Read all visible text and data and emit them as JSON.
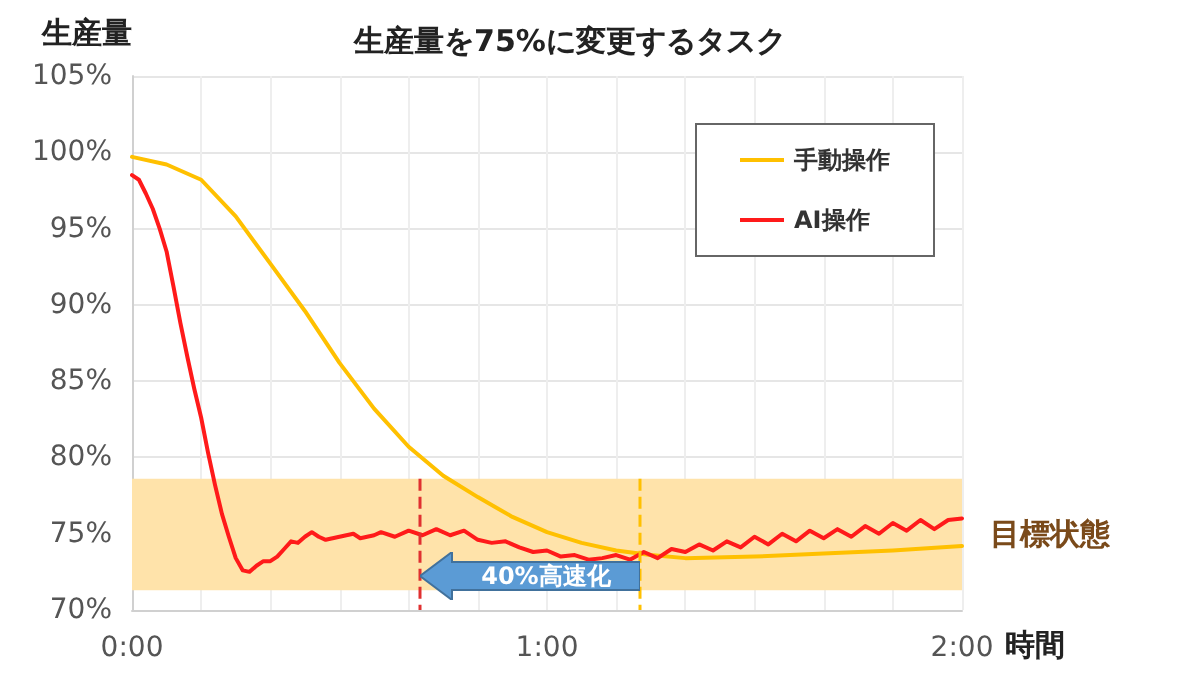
{
  "chart_data": {
    "type": "line",
    "title": "生産量を75%に変更するタスク",
    "xlabel": "時間",
    "ylabel": "生産量",
    "xlim": [
      0,
      120
    ],
    "xticks": [
      {
        "value": 0,
        "label": "0:00"
      },
      {
        "value": 10,
        "label": null
      },
      {
        "value": 20,
        "label": null
      },
      {
        "value": 30,
        "label": null
      },
      {
        "value": 40,
        "label": null
      },
      {
        "value": 50,
        "label": null
      },
      {
        "value": 60,
        "label": "1:00"
      },
      {
        "value": 70,
        "label": null
      },
      {
        "value": 80,
        "label": null
      },
      {
        "value": 90,
        "label": null
      },
      {
        "value": 100,
        "label": null
      },
      {
        "value": 110,
        "label": null
      },
      {
        "value": 120,
        "label": "2:00"
      }
    ],
    "ylim": [
      70,
      105
    ],
    "yticks": [
      {
        "value": 70,
        "label": "70%"
      },
      {
        "value": 75,
        "label": "75%"
      },
      {
        "value": 80,
        "label": "80%"
      },
      {
        "value": 85,
        "label": "85%"
      },
      {
        "value": 90,
        "label": "90%"
      },
      {
        "value": 95,
        "label": "95%"
      },
      {
        "value": 100,
        "label": "100%"
      },
      {
        "value": 105,
        "label": "105%"
      }
    ],
    "grid": true,
    "legend": "top right",
    "marker": "none",
    "line_style": "solid",
    "series": [
      {
        "name": "手動操作",
        "color": "#ffc000",
        "x": [
          0,
          5,
          10,
          15,
          20,
          25,
          30,
          35,
          40,
          45,
          50,
          55,
          60,
          65,
          70,
          75,
          80,
          90,
          100,
          110,
          120
        ],
        "values": [
          99.7,
          99.2,
          98.2,
          95.8,
          92.7,
          89.6,
          86.2,
          83.2,
          80.7,
          78.8,
          77.4,
          76.1,
          75.1,
          74.4,
          73.9,
          73.6,
          73.4,
          73.5,
          73.7,
          73.9,
          74.2
        ]
      },
      {
        "name": "AI操作",
        "color": "#ff1a1a",
        "x": [
          0,
          1,
          2,
          3,
          4,
          5,
          6,
          7,
          8,
          9,
          10,
          11,
          12,
          13,
          14,
          15,
          16,
          17,
          18,
          19,
          20,
          21,
          22,
          23,
          24,
          25,
          26,
          27,
          28,
          30,
          32,
          33,
          35,
          36,
          38,
          40,
          42,
          44,
          46,
          48,
          50,
          52,
          54,
          56,
          58,
          60,
          62,
          64,
          66,
          68,
          70,
          72,
          74,
          76,
          78,
          80,
          82,
          84,
          86,
          88,
          90,
          92,
          94,
          96,
          98,
          100,
          102,
          104,
          106,
          108,
          110,
          112,
          114,
          116,
          118,
          120
        ],
        "values": [
          98.5,
          98.2,
          97.3,
          96.3,
          95.0,
          93.5,
          91.2,
          88.8,
          86.6,
          84.5,
          82.6,
          80.3,
          78.2,
          76.3,
          74.8,
          73.4,
          72.6,
          72.5,
          72.9,
          73.2,
          73.2,
          73.5,
          74.0,
          74.5,
          74.4,
          74.8,
          75.1,
          74.8,
          74.6,
          74.8,
          75.0,
          74.7,
          74.9,
          75.1,
          74.8,
          75.2,
          74.9,
          75.3,
          74.9,
          75.2,
          74.6,
          74.4,
          74.5,
          74.1,
          73.8,
          73.9,
          73.5,
          73.6,
          73.3,
          73.4,
          73.6,
          73.3,
          73.8,
          73.4,
          74.0,
          73.8,
          74.3,
          73.9,
          74.5,
          74.1,
          74.8,
          74.3,
          75.0,
          74.5,
          75.2,
          74.7,
          75.3,
          74.8,
          75.5,
          75.0,
          75.7,
          75.2,
          75.9,
          75.3,
          75.9,
          76.0
        ]
      }
    ],
    "bands": [
      {
        "axis": "y",
        "from": 71.3,
        "to": 78.6,
        "label": "目標状態",
        "color": "#ffe3aa"
      }
    ],
    "ref_lines": [
      {
        "axis": "x",
        "value": 41.6,
        "color": "#e03030",
        "line_style": "dashed"
      },
      {
        "axis": "x",
        "value": 73.4,
        "color": "#ffc000",
        "line_style": "dashed"
      }
    ],
    "annotations": [
      {
        "text": "40%高速化",
        "x": 41.6,
        "y": 72.2
      }
    ]
  }
}
